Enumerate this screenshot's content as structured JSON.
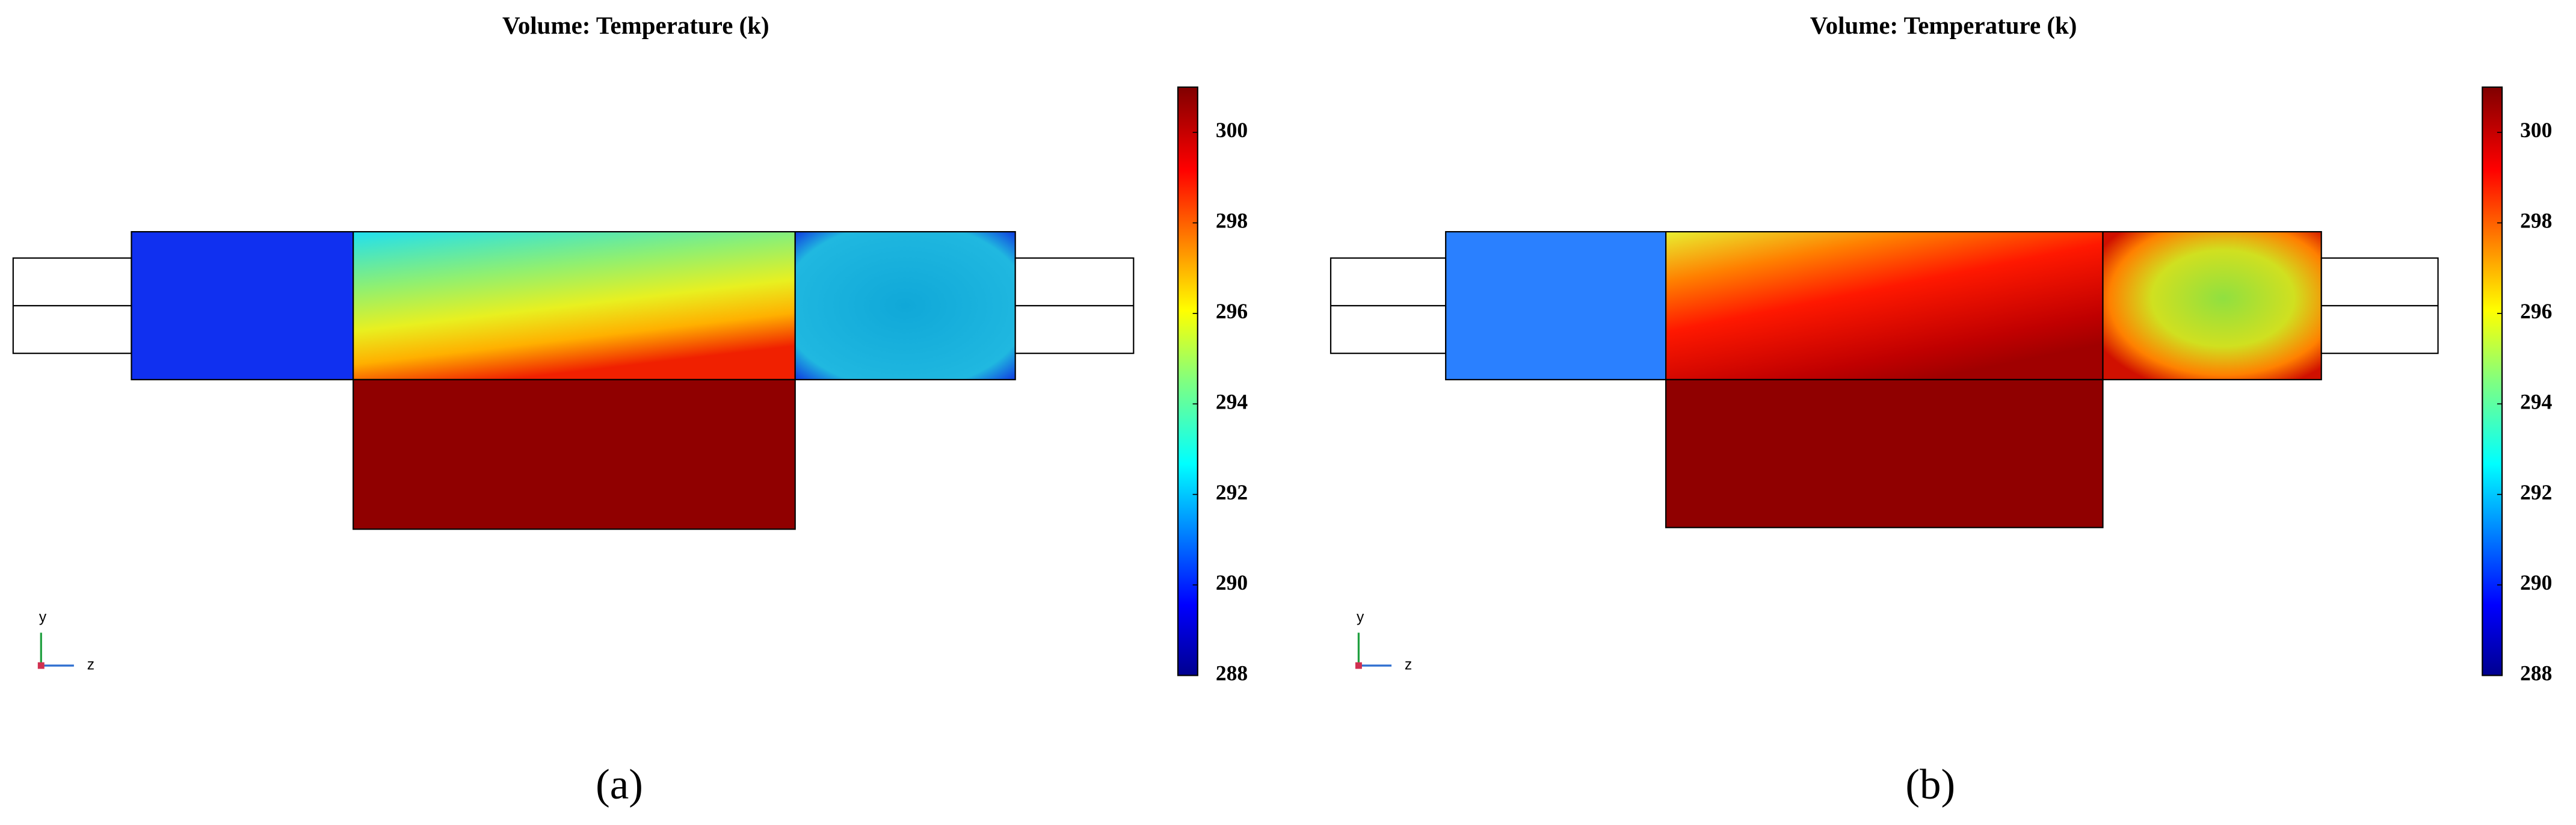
{
  "chart_data": [
    {
      "type": "heatmap",
      "title": "Volume: Temperature (k)",
      "colorbar_lim": [
        288,
        301
      ],
      "colorbar_ticks": [
        288,
        290,
        292,
        294,
        296,
        298,
        300
      ],
      "axis_labels": [
        "y",
        "z"
      ],
      "panel_label": "(a)"
    },
    {
      "type": "heatmap",
      "title": "Volume: Temperature (k)",
      "colorbar_lim": [
        288,
        301
      ],
      "colorbar_ticks": [
        288,
        290,
        292,
        294,
        296,
        298,
        300
      ],
      "axis_labels": [
        "y",
        "z"
      ],
      "panel_label": "(b)"
    }
  ]
}
